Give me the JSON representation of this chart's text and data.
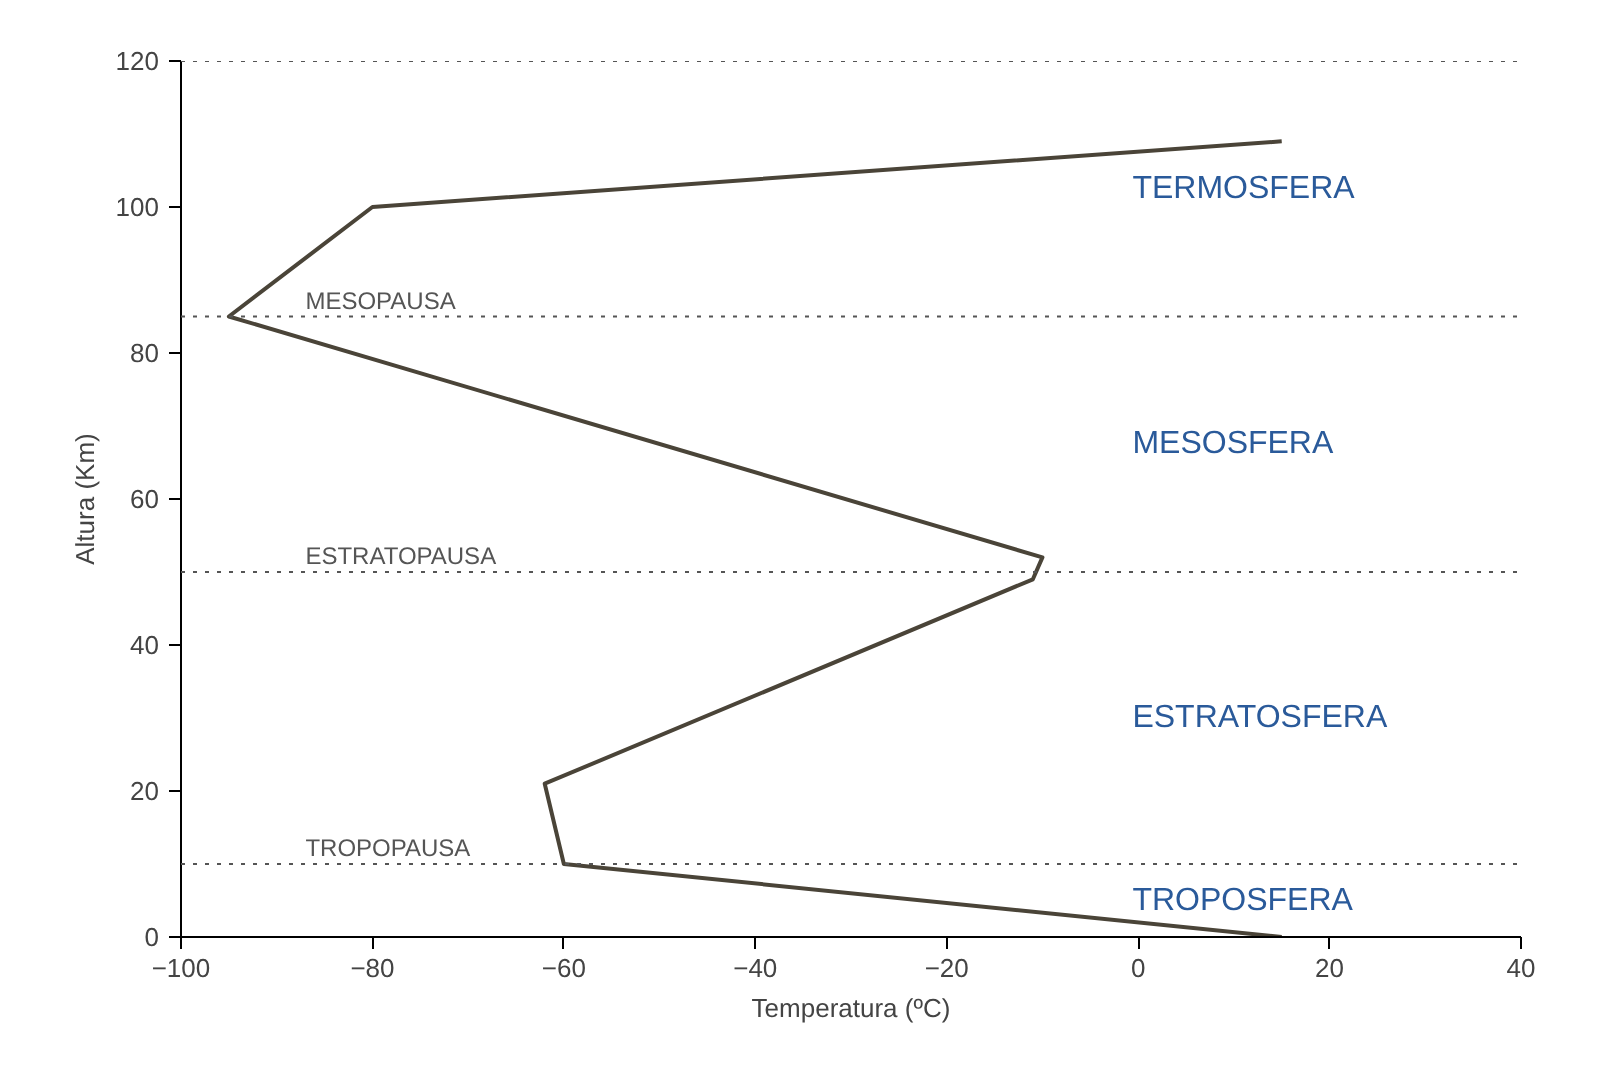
{
  "chart_data": {
    "type": "line",
    "xlabel": "Temperatura (ºC)",
    "ylabel": "Altura (Km)",
    "x": [
      15,
      -60,
      -62,
      -11,
      -10,
      -95,
      -80,
      15
    ],
    "series": [
      {
        "color": "#4a4438",
        "values": [
          0,
          10,
          21,
          49,
          52,
          85,
          100,
          109
        ]
      }
    ],
    "xlim": [
      -100,
      40
    ],
    "xticks": [
      -100,
      -80,
      -60,
      -40,
      -20,
      0,
      20,
      40
    ],
    "ylim": [
      0,
      120
    ],
    "yticks": [
      0,
      20,
      40,
      60,
      80,
      100,
      120
    ],
    "grid": false,
    "marker": "none",
    "line_style": "solid",
    "ref_lines": [
      {
        "axis": "y",
        "value": 10,
        "label": "TROPOPAUSA",
        "color": "#555555",
        "line_style": "dotted"
      },
      {
        "axis": "y",
        "value": 50,
        "label": "ESTRATOPAUSA",
        "color": "#555555",
        "line_style": "dotted"
      },
      {
        "axis": "y",
        "value": 85,
        "label": "MESOPAUSA",
        "color": "#555555",
        "line_style": "dotted"
      },
      {
        "axis": "y",
        "value": 120,
        "label": null,
        "color": "#555555",
        "line_style": "dotted"
      }
    ],
    "annotations": [
      "TERMOSFERA",
      "MESOSFERA",
      "ESTRATOSFERA",
      "TROPOSFERA"
    ]
  }
}
